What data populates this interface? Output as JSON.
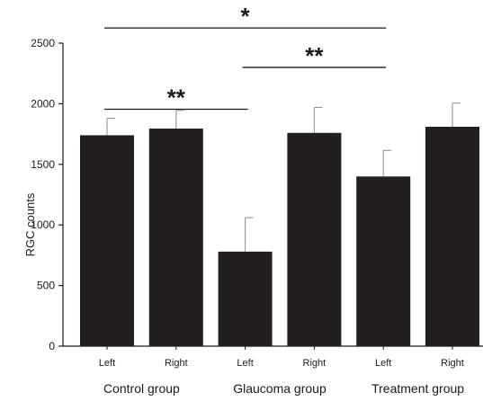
{
  "chart_data": {
    "type": "bar",
    "ylabel": "RGC counts",
    "xlabel": "",
    "title": "",
    "ylim": [
      0,
      2500
    ],
    "yticks": [
      0,
      500,
      1000,
      1500,
      2000,
      2500
    ],
    "categories": [
      "Left",
      "Right",
      "Left",
      "Right",
      "Left",
      "Right"
    ],
    "values": [
      1740,
      1795,
      780,
      1760,
      1400,
      1810
    ],
    "errors": [
      140,
      150,
      280,
      210,
      215,
      195
    ],
    "groups": [
      {
        "name": "Control group",
        "span": [
          0,
          1
        ]
      },
      {
        "name": "Glaucoma group",
        "span": [
          2,
          3
        ]
      },
      {
        "name": "Treatment group",
        "span": [
          4,
          5
        ]
      }
    ],
    "significance": [
      {
        "from": 0,
        "to": 2,
        "label": "**",
        "level": 1955
      },
      {
        "from": 2,
        "to": 4,
        "label": "**",
        "level": 2300
      },
      {
        "from": 0,
        "to": 4,
        "label": "*",
        "level": 2625
      }
    ],
    "bar_color": "#231f20",
    "grid": false,
    "legend": "none"
  }
}
